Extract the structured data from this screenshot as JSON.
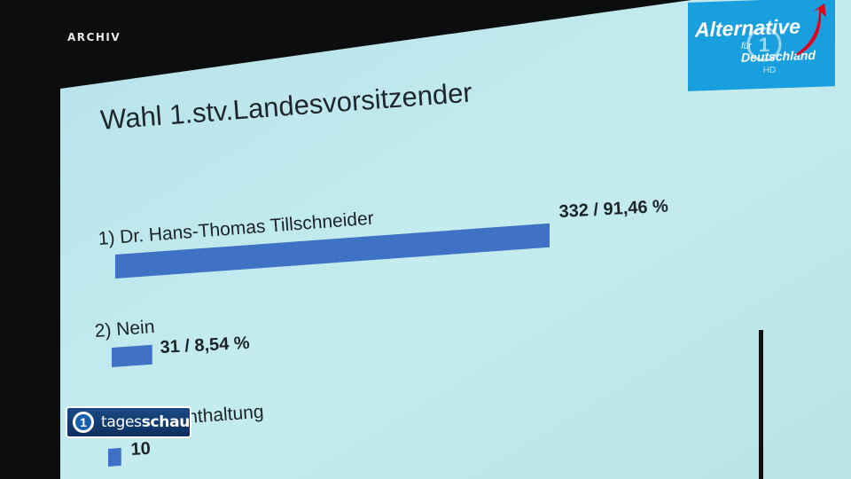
{
  "overlay": {
    "archive_label": "ARCHIV",
    "broadcaster": {
      "name_light": "tages",
      "name_bold": "schau",
      "icon": "ard-one-icon"
    }
  },
  "logo": {
    "line1": "Alternative",
    "line2": "für",
    "line3": "Deutschland",
    "hd": "HD",
    "color": "#1a9fde"
  },
  "chart_data": {
    "type": "bar",
    "orientation": "horizontal",
    "title": "Wahl 1.stv.Landesvorsitzender",
    "bar_color": "#3f72c4",
    "categories": [
      "1) Dr. Hans-Thomas Tillschneider",
      "2) Nein",
      "3) Enthaltung"
    ],
    "values": [
      332,
      31,
      10
    ],
    "labels": [
      "332 / 91,46 %",
      "31 / 8,54 %",
      "10"
    ],
    "xlim": [
      0,
      332
    ],
    "grid": false,
    "legend": "none"
  }
}
